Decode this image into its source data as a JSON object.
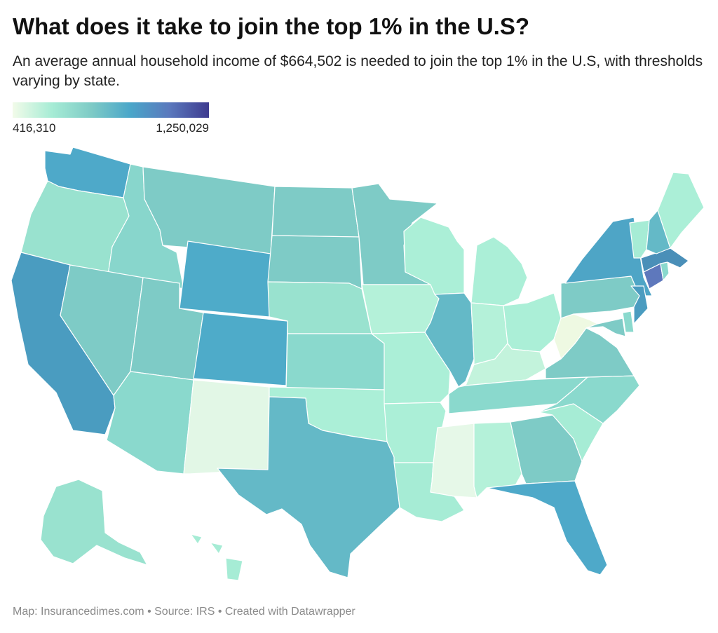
{
  "title": "What does it take to join the top 1% in the U.S?",
  "subtitle": "An average annual household income of $664,502 is needed to join the top 1% in the U.S, with thresholds varying by state.",
  "legend": {
    "min_label": "416,310",
    "max_label": "1,250,029",
    "min_value": 416310,
    "max_value": 1250029,
    "gradient_colors": [
      "#f2fbe9",
      "#a6ecd5",
      "#7ecbc6",
      "#4aa6c9",
      "#5a78bd",
      "#3e3b8f"
    ]
  },
  "footer": "Map: Insurancedimes.com • Source: IRS • Created with Datawrapper",
  "map_data": {
    "type": "choropleth",
    "states": [
      {
        "id": "WA",
        "color": "#4ea9c9"
      },
      {
        "id": "OR",
        "color": "#99e2cf"
      },
      {
        "id": "CA",
        "color": "#4a9cc0"
      },
      {
        "id": "ID",
        "color": "#88d6cc"
      },
      {
        "id": "NV",
        "color": "#7ecbc6"
      },
      {
        "id": "MT",
        "color": "#7ecbc6"
      },
      {
        "id": "WY",
        "color": "#4eabc9"
      },
      {
        "id": "UT",
        "color": "#7ecbc6"
      },
      {
        "id": "AZ",
        "color": "#8ad9cd"
      },
      {
        "id": "CO",
        "color": "#4eabc9"
      },
      {
        "id": "NM",
        "color": "#e2f7e6"
      },
      {
        "id": "ND",
        "color": "#7ecbc6"
      },
      {
        "id": "SD",
        "color": "#7ecbc6"
      },
      {
        "id": "NE",
        "color": "#99e2cf"
      },
      {
        "id": "KS",
        "color": "#8ad9cd"
      },
      {
        "id": "OK",
        "color": "#abefd7"
      },
      {
        "id": "TX",
        "color": "#64b9c7"
      },
      {
        "id": "MN",
        "color": "#7ecbc6"
      },
      {
        "id": "IA",
        "color": "#b4f1d9"
      },
      {
        "id": "MO",
        "color": "#abefd7"
      },
      {
        "id": "AR",
        "color": "#abefd7"
      },
      {
        "id": "LA",
        "color": "#a6ecd5"
      },
      {
        "id": "WI",
        "color": "#abefd7"
      },
      {
        "id": "IL",
        "color": "#64b9c7"
      },
      {
        "id": "MI",
        "color": "#abefd7"
      },
      {
        "id": "IN",
        "color": "#b4f1d9"
      },
      {
        "id": "OH",
        "color": "#abefd7"
      },
      {
        "id": "KY",
        "color": "#c3f3dc"
      },
      {
        "id": "TN",
        "color": "#8ad9cd"
      },
      {
        "id": "MS",
        "color": "#e6f8e8"
      },
      {
        "id": "AL",
        "color": "#b4f1d9"
      },
      {
        "id": "GA",
        "color": "#7ecbc6"
      },
      {
        "id": "FL",
        "color": "#4ea9c9"
      },
      {
        "id": "SC",
        "color": "#a6ecd5"
      },
      {
        "id": "NC",
        "color": "#8ad9cd"
      },
      {
        "id": "VA",
        "color": "#7ecbc6"
      },
      {
        "id": "WV",
        "color": "#eef9e2"
      },
      {
        "id": "PA",
        "color": "#7ecbc6"
      },
      {
        "id": "NY",
        "color": "#4ea5c6"
      },
      {
        "id": "NJ",
        "color": "#4a9cc0"
      },
      {
        "id": "DE",
        "color": "#8ad9cd"
      },
      {
        "id": "MD",
        "color": "#7ecbc6"
      },
      {
        "id": "CT",
        "color": "#5e78bc"
      },
      {
        "id": "RI",
        "color": "#8ad9cd"
      },
      {
        "id": "MA",
        "color": "#4a8fb8"
      },
      {
        "id": "VT",
        "color": "#a6ecd5"
      },
      {
        "id": "NH",
        "color": "#64b9c7"
      },
      {
        "id": "ME",
        "color": "#abefd7"
      },
      {
        "id": "AK",
        "color": "#99e2cf"
      },
      {
        "id": "HI",
        "color": "#a6ecd5"
      }
    ]
  }
}
